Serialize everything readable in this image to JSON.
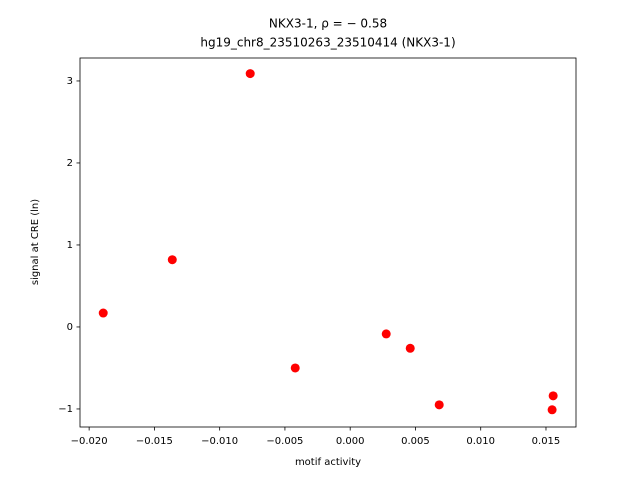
{
  "chart_data": {
    "type": "scatter",
    "title": "NKX3-1, ρ = − 0.58",
    "subtitle": "hg19_chr8_23510263_23510414 (NKX3-1)",
    "x_label": "motif activity",
    "y_label": "signal at CRE (ln)",
    "color": "#ff0000",
    "x": [
      -0.01892,
      -0.01363,
      -0.00766,
      -0.00421,
      0.00276,
      0.0046,
      0.00682,
      0.01555,
      0.01547
    ],
    "values": [
      0.17,
      0.82,
      3.09,
      -0.5,
      -0.085,
      -0.26,
      -0.95,
      -0.84,
      -1.01
    ],
    "xlim": [
      -0.0207,
      0.0173
    ],
    "ylim": [
      -1.22,
      3.28
    ],
    "xticks": [
      {
        "value": -0.02,
        "label": "−0.020"
      },
      {
        "value": -0.015,
        "label": "−0.015"
      },
      {
        "value": -0.01,
        "label": "−0.010"
      },
      {
        "value": -0.005,
        "label": "−0.005"
      },
      {
        "value": 0,
        "label": "0.000"
      },
      0.005,
      {
        "value": 0.01,
        "label": "0.010"
      },
      0.015
    ],
    "yticks": [
      {
        "value": -1,
        "label": "−1"
      },
      0,
      1,
      2,
      3
    ]
  }
}
